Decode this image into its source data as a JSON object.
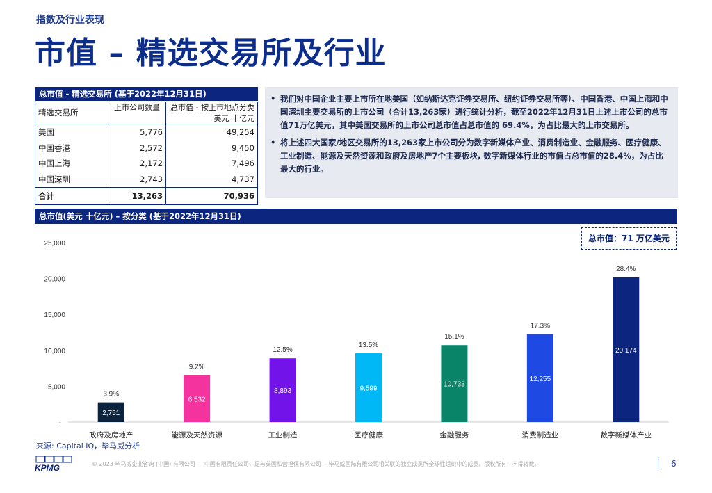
{
  "header": {
    "kicker": "指数及行业表现",
    "title": "市值 – 精选交易所及行业"
  },
  "exchange_table": {
    "title": "总市值 - 精选交易所 (基于2022年12月31日)",
    "col0": "精选交易所",
    "col1": "上市公司数量",
    "col2_line1": "总市值 - 按上市地点分类",
    "col2_line2": "美元 十亿元",
    "rows": [
      {
        "name": "美国",
        "count": "5,776",
        "value": "49,254"
      },
      {
        "name": "中国香港",
        "count": "2,572",
        "value": "9,450"
      },
      {
        "name": "中国上海",
        "count": "2,172",
        "value": "7,496"
      },
      {
        "name": "中国深圳",
        "count": "2,743",
        "value": "4,737"
      }
    ],
    "total": {
      "name": "合计",
      "count": "13,263",
      "value": "70,936"
    }
  },
  "notes": [
    "我们对中国企业主要上市所在地美国（如纳斯达克证券交易所、纽约证券交易所等）、中国香港、中国上海和中国深圳主要交易所的上市公司（合计13,263家）进行统计分析，截至2022年12月31日上述上市公司的总市值71万亿美元，其中美国交易所的上市公司总市值占总市值的 69.4%，为占比最大的上市交易所。",
    "将上述四大国家/地区交易所的13,263家上市公司分为数字新媒体产业、消费制造业、金融服务、医疗健康、工业制造、能源及天然资源和政府及房地产7个主要板块, 数字新媒体行业的市值占总市值的28.4%，为占比最大的行业。"
  ],
  "chart_header": "总市值(美元 十亿元) – 按分类 (基于2022年12月31日)",
  "total_box": "总市值：71 万亿美元",
  "chart_data": {
    "type": "bar",
    "categories": [
      "政府及房地产",
      "能源及天然资源",
      "工业制造",
      "医疗健康",
      "金融服务",
      "消费制造业",
      "数字新媒体产业"
    ],
    "values": [
      2751,
      6532,
      8893,
      9599,
      10733,
      12255,
      20174
    ],
    "value_labels": [
      "2,751",
      "6,532",
      "8,893",
      "9,599",
      "10,733",
      "12,255",
      "20,174"
    ],
    "percent_labels": [
      "3.9%",
      "9.2%",
      "12.5%",
      "13.5%",
      "15.1%",
      "17.3%",
      "28.4%"
    ],
    "colors": [
      "#0c233d",
      "#f5339e",
      "#7213ea",
      "#00b8f5",
      "#098468",
      "#1e49e2",
      "#0c2680"
    ],
    "y_ticks": [
      "-",
      "5,000",
      "10,000",
      "15,000",
      "20,000",
      "25,000"
    ],
    "ylim": [
      0,
      25000
    ],
    "grid": false
  },
  "source": "来源: Capital IQ，毕马威分析",
  "footer": {
    "logo": "KPMG",
    "text": "© 2023 毕马威企业咨询 (中国) 有限公司 — 中国有限责任公司，是与英国私营担保有限公司— 毕马威国际有限公司相关联的独立成员所全球性组织中的成员。版权所有，不得转载。",
    "page": "6"
  }
}
